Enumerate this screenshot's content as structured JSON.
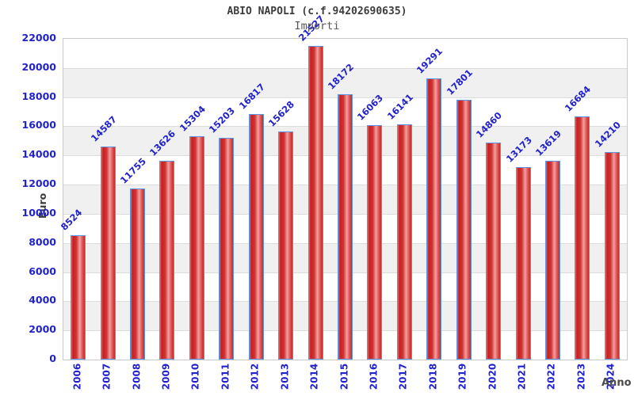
{
  "header": {
    "title": "ABIO NAPOLI (c.f.94202690635)",
    "subtitle": "Importi"
  },
  "chart_data": {
    "type": "bar",
    "title": "ABIO NAPOLI (c.f.94202690635)",
    "subtitle": "Importi",
    "xlabel": "Anno",
    "ylabel": "Euro",
    "categories": [
      "2006",
      "2007",
      "2008",
      "2009",
      "2010",
      "2011",
      "2012",
      "2013",
      "2014",
      "2015",
      "2016",
      "2017",
      "2018",
      "2019",
      "2020",
      "2021",
      "2022",
      "2023",
      "2024"
    ],
    "values": [
      8524,
      14587,
      11755,
      13626,
      15304,
      15203,
      16817,
      15628,
      21527,
      18172,
      16063,
      16141,
      19291,
      17801,
      14860,
      13173,
      13619,
      16684,
      14210
    ],
    "bar_labels_shown": true,
    "ylim": [
      0,
      22000
    ],
    "ytick_step": 2000,
    "grid": "horizontal gridlines with alternating shaded bands",
    "legend": "none"
  },
  "colors": {
    "axis_text": "#2222cc",
    "bar_border": "#5a95e8",
    "bar_gradient": [
      "#dd6a6a",
      "#c22222",
      "#d03333",
      "#f5a0a0",
      "#de5555",
      "#c52b2b"
    ],
    "band_gray": "#f0f0f0",
    "band_white": "#ffffff",
    "gridline": "#dcdcdc",
    "plot_border": "#c9c9c9",
    "title_color": "#3c3c3c",
    "subtitle_color": "#575757"
  }
}
